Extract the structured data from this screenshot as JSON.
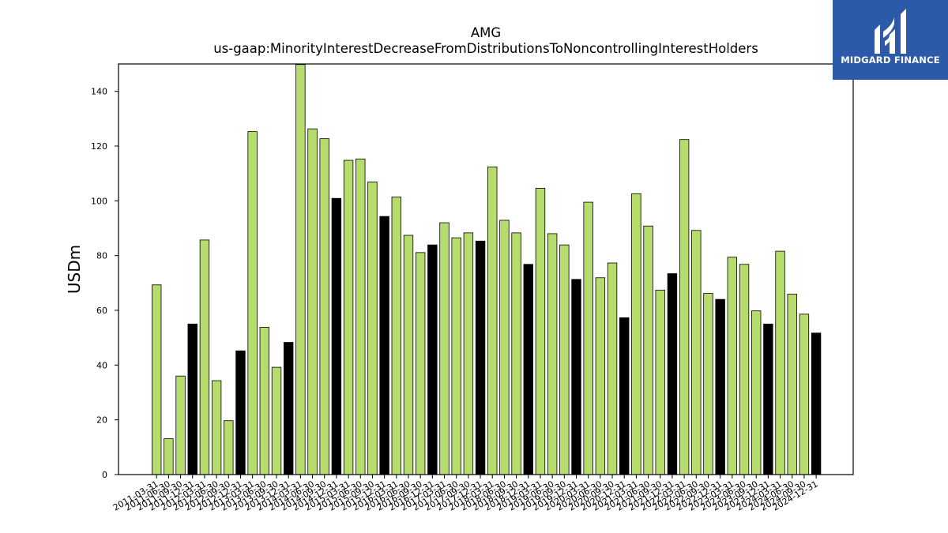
{
  "brand": {
    "name": "MIDGARD FINANCE",
    "color": "#2d5aa8"
  },
  "colors": {
    "bar_regular": "#b5dc6c",
    "bar_year_end": "#000000"
  },
  "chart_data": {
    "type": "bar",
    "title": "AMG",
    "subtitle": "us-gaap:MinorityInterestDecreaseFromDistributionsToNoncontrollingInterestHolders",
    "xlabel": "",
    "ylabel": "USDm",
    "ylim": [
      0,
      150
    ],
    "yticks": [
      0,
      20,
      40,
      60,
      80,
      100,
      120,
      140
    ],
    "grid": false,
    "categories": [
      "2011-03-31",
      "2011-06-30",
      "2011-09-30",
      "2011-12-31",
      "2012-03-31",
      "2012-06-30",
      "2012-09-30",
      "2012-12-31",
      "2013-03-31",
      "2013-06-30",
      "2013-09-30",
      "2013-12-31",
      "2014-03-31",
      "2014-06-30",
      "2014-09-30",
      "2014-12-31",
      "2015-03-31",
      "2015-06-30",
      "2015-09-30",
      "2015-12-31",
      "2016-03-31",
      "2016-06-30",
      "2016-09-30",
      "2016-12-31",
      "2017-03-31",
      "2017-06-30",
      "2017-09-30",
      "2017-12-31",
      "2018-03-31",
      "2018-06-30",
      "2018-09-30",
      "2018-12-31",
      "2019-03-31",
      "2019-06-30",
      "2019-09-30",
      "2019-12-31",
      "2020-03-31",
      "2020-06-30",
      "2020-09-30",
      "2020-12-31",
      "2021-03-31",
      "2021-06-30",
      "2021-09-30",
      "2021-12-31",
      "2022-03-31",
      "2022-06-30",
      "2022-09-30",
      "2022-12-31",
      "2023-03-31",
      "2023-06-30",
      "2023-09-30",
      "2023-12-31",
      "2024-03-31",
      "2024-06-30",
      "2024-09-30",
      "2024-12-31"
    ],
    "values": [
      69.3,
      13.1,
      36.0,
      55.0,
      85.7,
      34.3,
      19.7,
      45.2,
      125.3,
      53.8,
      39.2,
      48.3,
      149.8,
      126.3,
      122.7,
      100.9,
      114.8,
      115.3,
      106.9,
      94.3,
      101.4,
      87.4,
      81.1,
      83.9,
      92.0,
      86.5,
      88.3,
      85.3,
      112.4,
      92.9,
      88.3,
      76.8,
      104.6,
      88.0,
      83.9,
      71.3,
      99.5,
      71.9,
      77.3,
      57.3,
      102.6,
      90.8,
      67.4,
      73.4,
      122.4,
      89.2,
      66.2,
      64.0,
      79.4,
      76.8,
      59.8,
      55.0,
      81.6,
      65.9,
      58.6,
      51.7
    ]
  }
}
